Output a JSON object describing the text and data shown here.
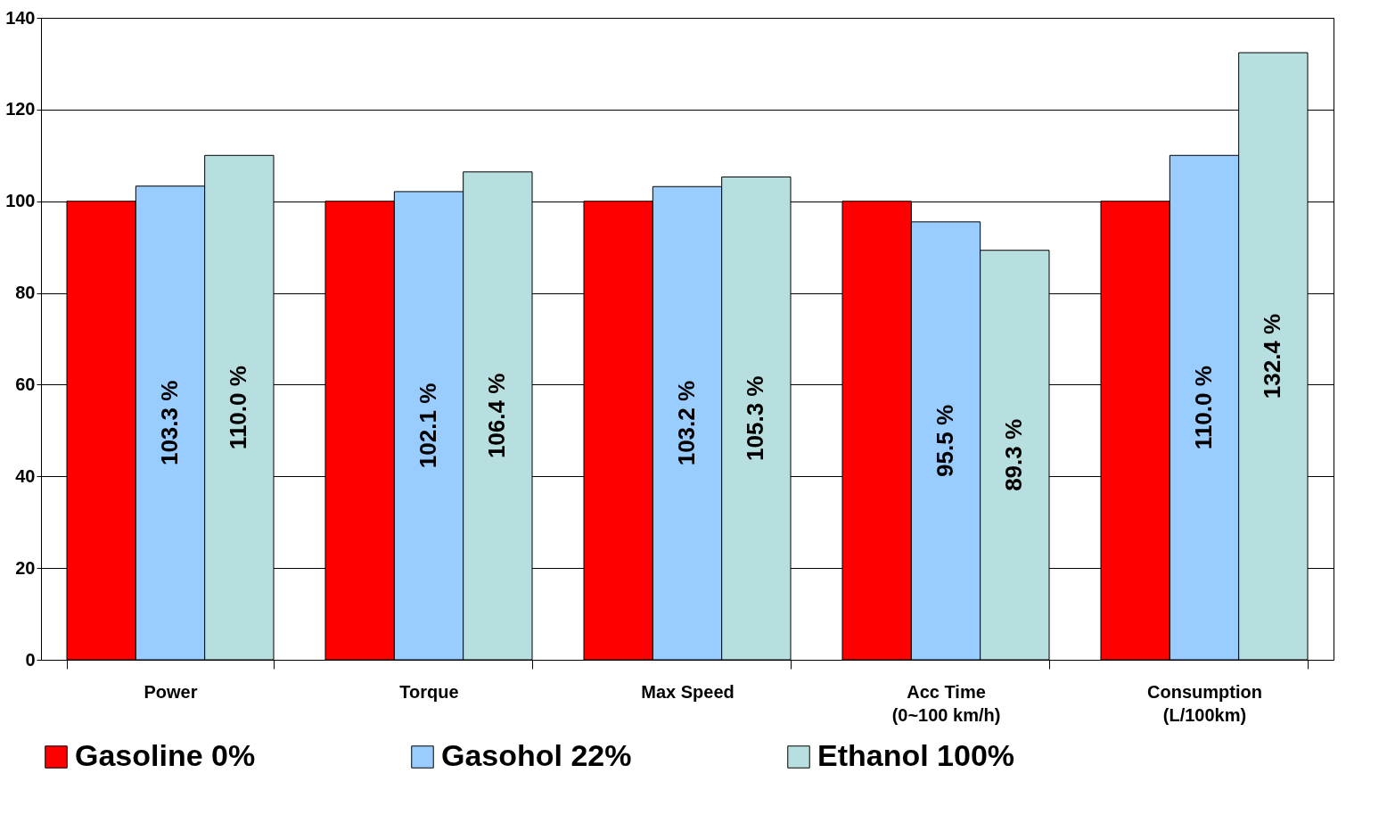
{
  "chart_data": {
    "type": "bar",
    "categories": [
      "Power",
      "Torque",
      "Max Speed",
      "Acc Time\n(0~100 km/h)",
      "Consumption\n(L/100km)"
    ],
    "series": [
      {
        "name": "Gasoline 0%",
        "color": "#ff0000",
        "values": [
          100,
          100,
          100,
          100,
          100
        ]
      },
      {
        "name": "Gasohol 22%",
        "color": "#99ccff",
        "values": [
          103.3,
          102.1,
          103.2,
          95.5,
          110.0
        ],
        "value_labels": [
          "103.3 %",
          "102.1 %",
          "103.2 %",
          "95.5 %",
          "110.0 %"
        ]
      },
      {
        "name": "Ethanol 100%",
        "color": "#b8dfe0",
        "values": [
          110.0,
          106.4,
          105.3,
          89.3,
          132.4
        ],
        "value_labels": [
          "110.0 %",
          "106.4 %",
          "105.3 %",
          "89.3 %",
          "132.4 %"
        ]
      }
    ],
    "ylim": [
      0,
      140
    ],
    "yticks": [
      0,
      20,
      40,
      60,
      80,
      100,
      120,
      140
    ],
    "grid": "y",
    "legend": "bottom"
  }
}
